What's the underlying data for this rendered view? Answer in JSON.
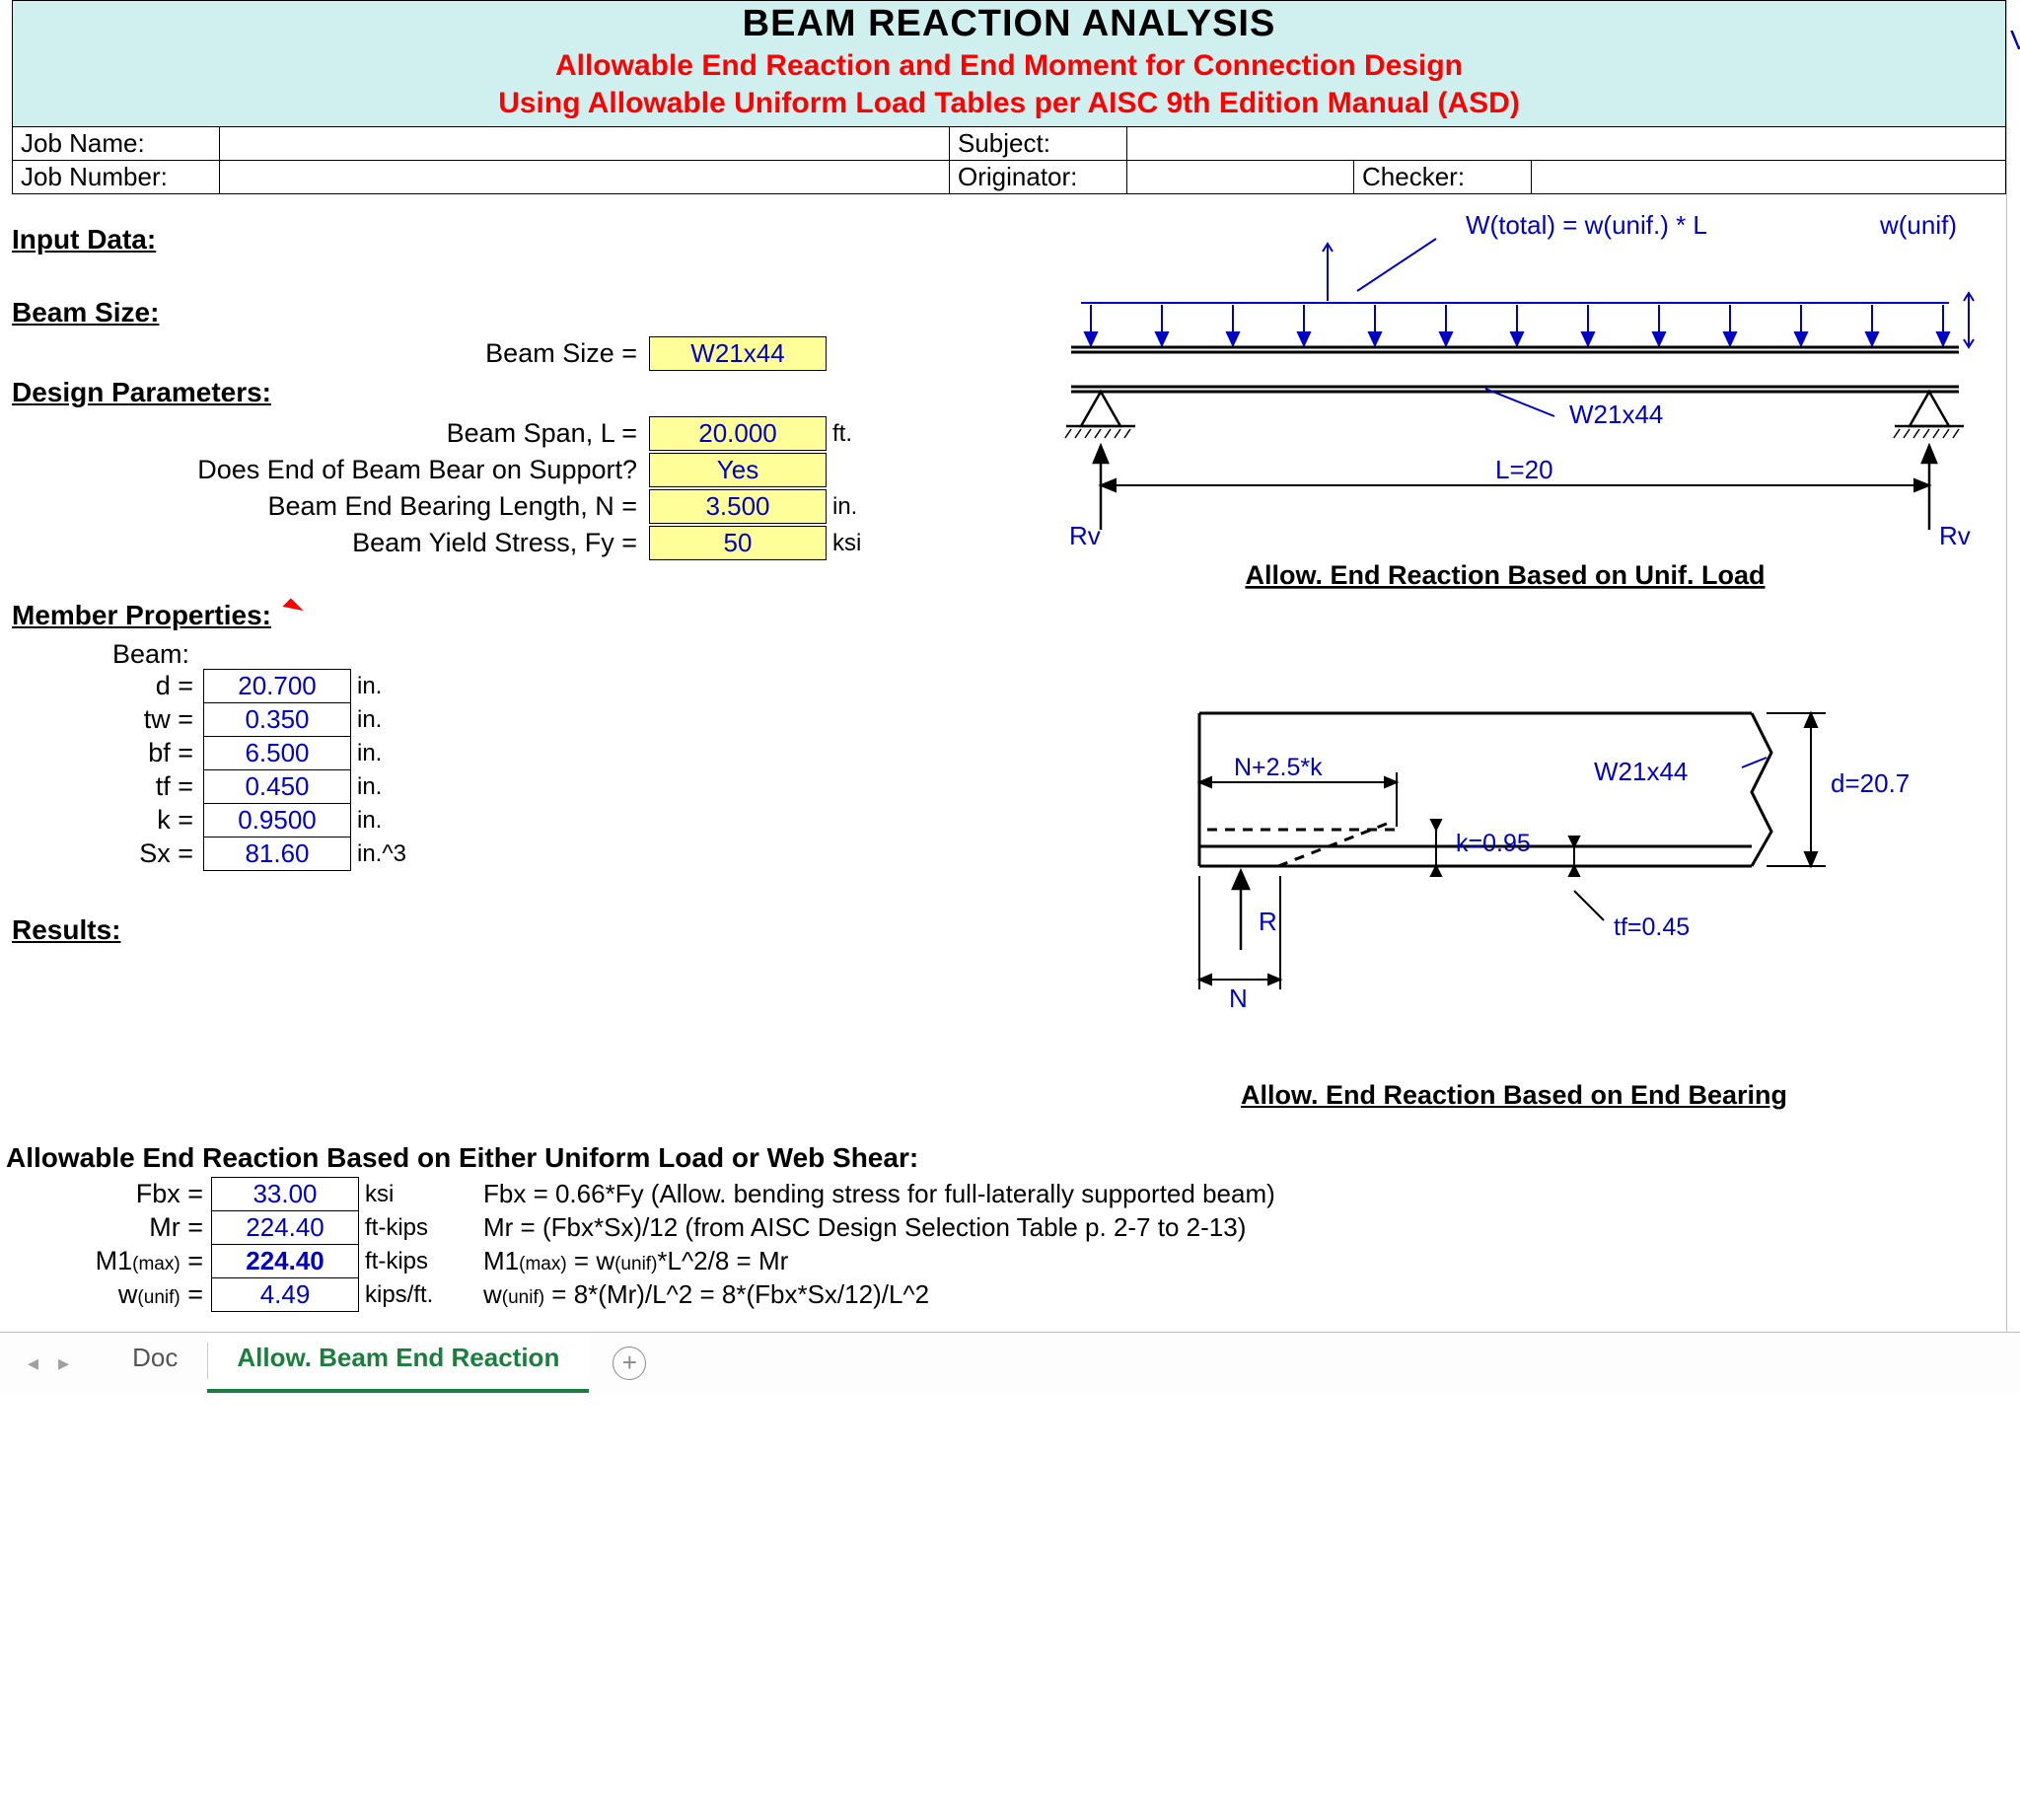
{
  "header": {
    "title": "BEAM REACTION ANALYSIS",
    "sub1": "Allowable End Reaction and End Moment for Connection Design",
    "sub2": "Using Allowable Uniform Load Tables per AISC 9th Edition Manual (ASD)"
  },
  "info_row1": {
    "c1": "Job Name:",
    "c2": "",
    "c3": "Subject:",
    "c4": ""
  },
  "info_row2": {
    "c1": "Job Number:",
    "c2": "",
    "c3": "Originator:",
    "c4": "",
    "c5": "Checker:",
    "c6": ""
  },
  "sections": {
    "input": "Input Data:",
    "beam_size": "Beam Size:",
    "design_params": "Design Parameters:",
    "member_props": "Member Properties:",
    "results": "Results:",
    "allow_end_reaction": "Allowable End Reaction Based on Either Uniform Load or Web Shear:"
  },
  "beam_size": {
    "label": "Beam Size =",
    "value": "W21x44"
  },
  "design": {
    "span": {
      "label": "Beam Span, L =",
      "value": "20.000",
      "unit": "ft."
    },
    "bears": {
      "label": "Does End of Beam Bear on Support?",
      "value": "Yes",
      "unit": ""
    },
    "N": {
      "label": "Beam End Bearing Length, N =",
      "value": "3.500",
      "unit": "in."
    },
    "Fy": {
      "label": "Beam Yield Stress, Fy =",
      "value": "50",
      "unit": "ksi"
    }
  },
  "member": {
    "header": "Beam:",
    "rows": [
      {
        "label": "d =",
        "value": "20.700",
        "unit": "in."
      },
      {
        "label": "tw =",
        "value": "0.350",
        "unit": "in."
      },
      {
        "label": "bf =",
        "value": "6.500",
        "unit": "in."
      },
      {
        "label": "tf =",
        "value": "0.450",
        "unit": "in."
      },
      {
        "label": "k =",
        "value": "0.9500",
        "unit": "in."
      },
      {
        "label": "Sx =",
        "value": "81.60",
        "unit": "in.^3"
      }
    ]
  },
  "diagram1": {
    "w_total": "W(total) = w(unif.) * L",
    "w_unif": "w(unif)",
    "size": "W21x44",
    "L": "L=20",
    "Rv": "Rv",
    "caption": "Allow. End Reaction Based on Unif. Load"
  },
  "diagram2": {
    "size": "W21x44",
    "d": "d=20.7",
    "k": "k=0.95",
    "tf": "tf=0.45",
    "n25k": "N+2.5*k",
    "R": "R",
    "N": "N",
    "caption": "Allow. End Reaction Based on End Bearing"
  },
  "results": {
    "rows": [
      {
        "label": "Fbx =",
        "value": "33.00",
        "unit": "ksi",
        "bold": false,
        "expl": "Fbx = 0.66*Fy  (Allow. bending stress for full-laterally supported beam)"
      },
      {
        "label": "Mr =",
        "value": "224.40",
        "unit": "ft-kips",
        "bold": false,
        "expl": "Mr = (Fbx*Sx)/12  (from AISC Design Selection Table p. 2-7 to 2-13)"
      },
      {
        "label_html": "M1<span class='small'>(max)</span> =",
        "value": "224.40",
        "unit": "ft-kips",
        "bold": true,
        "expl_html": "M1<span class='small'>(max)</span> = w<span class='small'>(unif)</span>*L^2/8 = Mr"
      },
      {
        "label_html": "w<span class='small'>(unif)</span> =",
        "value": "4.49",
        "unit": "kips/ft.",
        "bold": false,
        "expl_html": "w<span class='small'>(unif)</span> = 8*(Mr)/L^2 = 8*(Fbx*Sx/12)/L^2"
      }
    ]
  },
  "tabs": {
    "prev": "◂",
    "next": "▸",
    "items": [
      {
        "label": "Doc",
        "active": false
      },
      {
        "label": "Allow. Beam End Reaction",
        "active": true
      }
    ],
    "plus": "+"
  },
  "colors": {
    "header_bg": "#d0f0f0",
    "accent_red": "#ff0000",
    "value_blue": "#0000c4",
    "yellow_fill": "#ffff99",
    "tab_green": "#1a7f3c"
  }
}
